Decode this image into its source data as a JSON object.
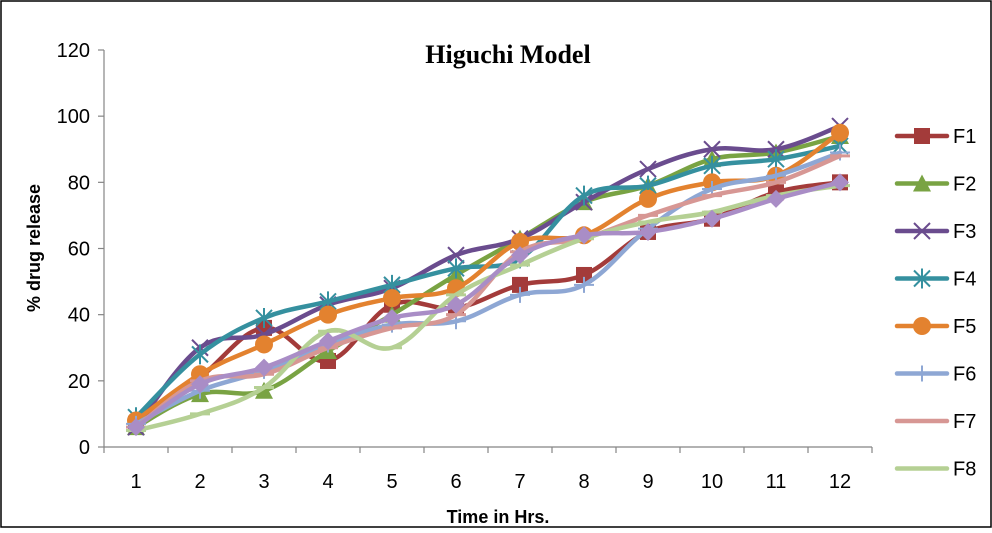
{
  "chart_data": {
    "type": "line",
    "title": "Higuchi Model",
    "xlabel": "Time in Hrs.",
    "ylabel": "% drug release",
    "categories": [
      "1",
      "2",
      "3",
      "4",
      "5",
      "6",
      "7",
      "8",
      "9",
      "10",
      "11",
      "12"
    ],
    "ylim": [
      0,
      120
    ],
    "yticks": [
      "0",
      "20",
      "40",
      "60",
      "80",
      "100",
      "120"
    ],
    "legend_position": "right",
    "grid": false,
    "series": [
      {
        "name": "F1",
        "color": "#A33B3A",
        "marker": "square",
        "values": [
          7,
          21,
          36,
          26,
          43,
          42,
          49,
          52,
          65,
          69,
          77,
          80
        ]
      },
      {
        "name": "F2",
        "color": "#79A343",
        "marker": "triangle",
        "values": [
          6,
          16,
          17,
          29,
          40,
          52,
          63,
          74,
          79,
          87,
          89,
          94
        ]
      },
      {
        "name": "F3",
        "color": "#6A4C8E",
        "marker": "x",
        "values": [
          6,
          30,
          34,
          43,
          48,
          58,
          63,
          74,
          84,
          90,
          90,
          97
        ]
      },
      {
        "name": "F4",
        "color": "#35909F",
        "marker": "star",
        "values": [
          9,
          28,
          39,
          44,
          49,
          54,
          57,
          76,
          79,
          85,
          87,
          91
        ]
      },
      {
        "name": "F5",
        "color": "#E3822F",
        "marker": "circle",
        "values": [
          8,
          22,
          31,
          40,
          45,
          48,
          62,
          64,
          75,
          80,
          82,
          95
        ]
      },
      {
        "name": "F6",
        "color": "#8EA7D4",
        "marker": "plus",
        "values": [
          7,
          17,
          23,
          31,
          37,
          38,
          46,
          49,
          66,
          78,
          82,
          89
        ]
      },
      {
        "name": "F7",
        "color": "#D79794",
        "marker": "dash",
        "values": [
          6,
          20,
          22,
          30,
          36,
          40,
          59,
          63,
          70,
          76,
          80,
          88
        ]
      },
      {
        "name": "F8",
        "color": "#B5D094",
        "marker": "dash",
        "values": [
          5,
          10,
          18,
          35,
          30,
          46,
          55,
          63,
          68,
          71,
          76,
          79
        ]
      },
      {
        "name": "",
        "color": "#A98DC6",
        "marker": "diamond",
        "values": [
          6,
          19,
          24,
          32,
          39,
          43,
          58,
          64,
          65,
          69,
          75,
          80
        ]
      }
    ]
  }
}
